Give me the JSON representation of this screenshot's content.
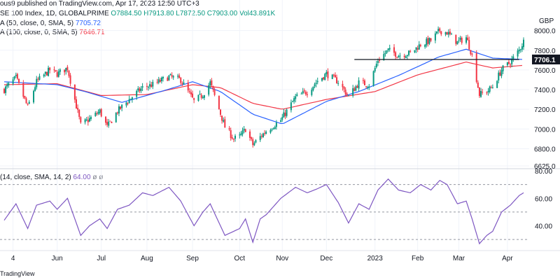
{
  "header": {
    "published": "ous9 published on TradingView.com, Apr 17, 2023 12:50 UTC+3",
    "symbol": "SE 100 Index, 1D, GLOBALPRIME",
    "ohlc": {
      "o": "O7884.50",
      "h": "H7913.80",
      "l": "L7872.50",
      "c": "C7903.00",
      "vol": "Vol43.891K"
    },
    "ma1": {
      "label": "A (50, close, 0, SMA, 5)",
      "value": "7705.72"
    },
    "ma2": {
      "label": "A (100, close, 0, SMA, 5)",
      "value": "7646.71"
    },
    "rsi": {
      "label": "(14, close, SMA, 14, 2)",
      "value": "64.00",
      "extra": "ø  ø"
    },
    "footer": "TradingView"
  },
  "colors": {
    "up": "#089981",
    "down": "#f23645",
    "ma50": "#2962ff",
    "ma100": "#f23645",
    "rsi": "#7e57c2",
    "grid": "#f0f3fa"
  },
  "chart_data": {
    "type": "candlestick",
    "currency": "GBP",
    "price_ticks": [
      "8000.0",
      "7800.0",
      "7600.0",
      "7400.0",
      "7200.0",
      "7000.0",
      "6800.0",
      "6625.0"
    ],
    "price_tick_values": [
      8000,
      7800,
      7600,
      7400,
      7200,
      7000,
      6800,
      6625
    ],
    "price_range": [
      6625,
      8040
    ],
    "horizontal_level": {
      "value": 7706,
      "label": "7706.1",
      "from_date": "2022-12-20",
      "to_date": "2023-04-11"
    },
    "rsi_ticks": [
      "80.00",
      "60.00",
      "40.00"
    ],
    "rsi_tick_values": [
      80,
      60,
      40
    ],
    "rsi_range": [
      25,
      80
    ],
    "rsi_bands": [
      70,
      50,
      30
    ],
    "x_labels": [
      "4",
      "Jun",
      "Jul",
      "Aug",
      "Sep",
      "Oct",
      "Nov",
      "Dec",
      "2023",
      "Feb",
      "Mar",
      "Apr"
    ],
    "x_label_dates": [
      "2022-05-02",
      "2022-06-01",
      "2022-07-01",
      "2022-08-01",
      "2022-09-01",
      "2022-10-03",
      "2022-11-01",
      "2022-12-01",
      "2023-01-03",
      "2023-02-01",
      "2023-03-01",
      "2023-04-03"
    ],
    "price_anchors": [
      [
        "2022-04-26",
        7400
      ],
      [
        "2022-05-04",
        7520
      ],
      [
        "2022-05-12",
        7220
      ],
      [
        "2022-05-18",
        7480
      ],
      [
        "2022-05-27",
        7600
      ],
      [
        "2022-06-01",
        7560
      ],
      [
        "2022-06-08",
        7620
      ],
      [
        "2022-06-17",
        7040
      ],
      [
        "2022-06-23",
        7100
      ],
      [
        "2022-06-30",
        7180
      ],
      [
        "2022-07-05",
        7020
      ],
      [
        "2022-07-12",
        7180
      ],
      [
        "2022-07-20",
        7300
      ],
      [
        "2022-07-29",
        7420
      ],
      [
        "2022-08-05",
        7450
      ],
      [
        "2022-08-16",
        7530
      ],
      [
        "2022-08-24",
        7500
      ],
      [
        "2022-09-02",
        7280
      ],
      [
        "2022-09-08",
        7350
      ],
      [
        "2022-09-13",
        7470
      ],
      [
        "2022-09-23",
        7020
      ],
      [
        "2022-09-29",
        6900
      ],
      [
        "2022-10-03",
        6920
      ],
      [
        "2022-10-07",
        7000
      ],
      [
        "2022-10-12",
        6840
      ],
      [
        "2022-10-17",
        6920
      ],
      [
        "2022-10-21",
        6980
      ],
      [
        "2022-10-31",
        7090
      ],
      [
        "2022-11-10",
        7320
      ],
      [
        "2022-11-18",
        7380
      ],
      [
        "2022-11-25",
        7490
      ],
      [
        "2022-12-01",
        7560
      ],
      [
        "2022-12-09",
        7480
      ],
      [
        "2022-12-16",
        7330
      ],
      [
        "2022-12-23",
        7470
      ],
      [
        "2022-12-30",
        7450
      ],
      [
        "2023-01-05",
        7700
      ],
      [
        "2023-01-12",
        7800
      ],
      [
        "2023-01-19",
        7750
      ],
      [
        "2023-01-27",
        7770
      ],
      [
        "2023-02-03",
        7860
      ],
      [
        "2023-02-10",
        7900
      ],
      [
        "2023-02-16",
        8000
      ],
      [
        "2023-02-21",
        7980
      ],
      [
        "2023-02-28",
        7880
      ],
      [
        "2023-03-06",
        7930
      ],
      [
        "2023-03-10",
        7750
      ],
      [
        "2023-03-15",
        7350
      ],
      [
        "2023-03-20",
        7380
      ],
      [
        "2023-03-24",
        7430
      ],
      [
        "2023-03-30",
        7600
      ],
      [
        "2023-04-05",
        7680
      ],
      [
        "2023-04-11",
        7800
      ],
      [
        "2023-04-14",
        7890
      ]
    ],
    "ma50_anchors": [
      [
        "2022-04-26",
        7480
      ],
      [
        "2022-06-01",
        7450
      ],
      [
        "2022-06-20",
        7380
      ],
      [
        "2022-07-15",
        7270
      ],
      [
        "2022-08-15",
        7400
      ],
      [
        "2022-09-01",
        7480
      ],
      [
        "2022-09-20",
        7380
      ],
      [
        "2022-10-12",
        7150
      ],
      [
        "2022-11-01",
        7050
      ],
      [
        "2022-12-01",
        7280
      ],
      [
        "2022-12-23",
        7380
      ],
      [
        "2023-01-20",
        7550
      ],
      [
        "2023-02-15",
        7730
      ],
      [
        "2023-03-06",
        7810
      ],
      [
        "2023-03-24",
        7720
      ],
      [
        "2023-04-14",
        7706
      ]
    ],
    "ma100_anchors": [
      [
        "2022-04-26",
        7450
      ],
      [
        "2022-06-01",
        7460
      ],
      [
        "2022-07-01",
        7340
      ],
      [
        "2022-08-01",
        7350
      ],
      [
        "2022-09-01",
        7450
      ],
      [
        "2022-09-20",
        7420
      ],
      [
        "2022-10-12",
        7260
      ],
      [
        "2022-11-01",
        7200
      ],
      [
        "2022-12-01",
        7300
      ],
      [
        "2023-01-03",
        7380
      ],
      [
        "2023-02-01",
        7550
      ],
      [
        "2023-03-06",
        7680
      ],
      [
        "2023-03-24",
        7620
      ],
      [
        "2023-04-14",
        7647
      ]
    ],
    "rsi_anchors": [
      [
        "2022-04-26",
        44
      ],
      [
        "2022-05-04",
        56
      ],
      [
        "2022-05-12",
        38
      ],
      [
        "2022-05-18",
        55
      ],
      [
        "2022-05-27",
        58
      ],
      [
        "2022-06-01",
        52
      ],
      [
        "2022-06-08",
        60
      ],
      [
        "2022-06-17",
        33
      ],
      [
        "2022-06-23",
        40
      ],
      [
        "2022-06-30",
        45
      ],
      [
        "2022-07-05",
        38
      ],
      [
        "2022-07-12",
        52
      ],
      [
        "2022-07-20",
        55
      ],
      [
        "2022-07-29",
        64
      ],
      [
        "2022-08-05",
        62
      ],
      [
        "2022-08-16",
        68
      ],
      [
        "2022-08-24",
        58
      ],
      [
        "2022-09-02",
        40
      ],
      [
        "2022-09-08",
        50
      ],
      [
        "2022-09-13",
        56
      ],
      [
        "2022-09-23",
        33
      ],
      [
        "2022-09-29",
        36
      ],
      [
        "2022-10-03",
        38
      ],
      [
        "2022-10-07",
        45
      ],
      [
        "2022-10-12",
        28
      ],
      [
        "2022-10-17",
        45
      ],
      [
        "2022-10-21",
        48
      ],
      [
        "2022-10-31",
        60
      ],
      [
        "2022-11-10",
        68
      ],
      [
        "2022-11-18",
        64
      ],
      [
        "2022-11-25",
        67
      ],
      [
        "2022-12-01",
        70
      ],
      [
        "2022-12-09",
        57
      ],
      [
        "2022-12-16",
        42
      ],
      [
        "2022-12-23",
        56
      ],
      [
        "2022-12-30",
        52
      ],
      [
        "2023-01-05",
        66
      ],
      [
        "2023-01-12",
        74
      ],
      [
        "2023-01-19",
        66
      ],
      [
        "2023-01-27",
        64
      ],
      [
        "2023-02-03",
        70
      ],
      [
        "2023-02-10",
        66
      ],
      [
        "2023-02-16",
        73
      ],
      [
        "2023-02-21",
        70
      ],
      [
        "2023-02-28",
        56
      ],
      [
        "2023-03-06",
        58
      ],
      [
        "2023-03-10",
        45
      ],
      [
        "2023-03-15",
        27
      ],
      [
        "2023-03-20",
        33
      ],
      [
        "2023-03-24",
        36
      ],
      [
        "2023-03-30",
        50
      ],
      [
        "2023-04-05",
        55
      ],
      [
        "2023-04-11",
        62
      ],
      [
        "2023-04-14",
        64
      ]
    ]
  }
}
